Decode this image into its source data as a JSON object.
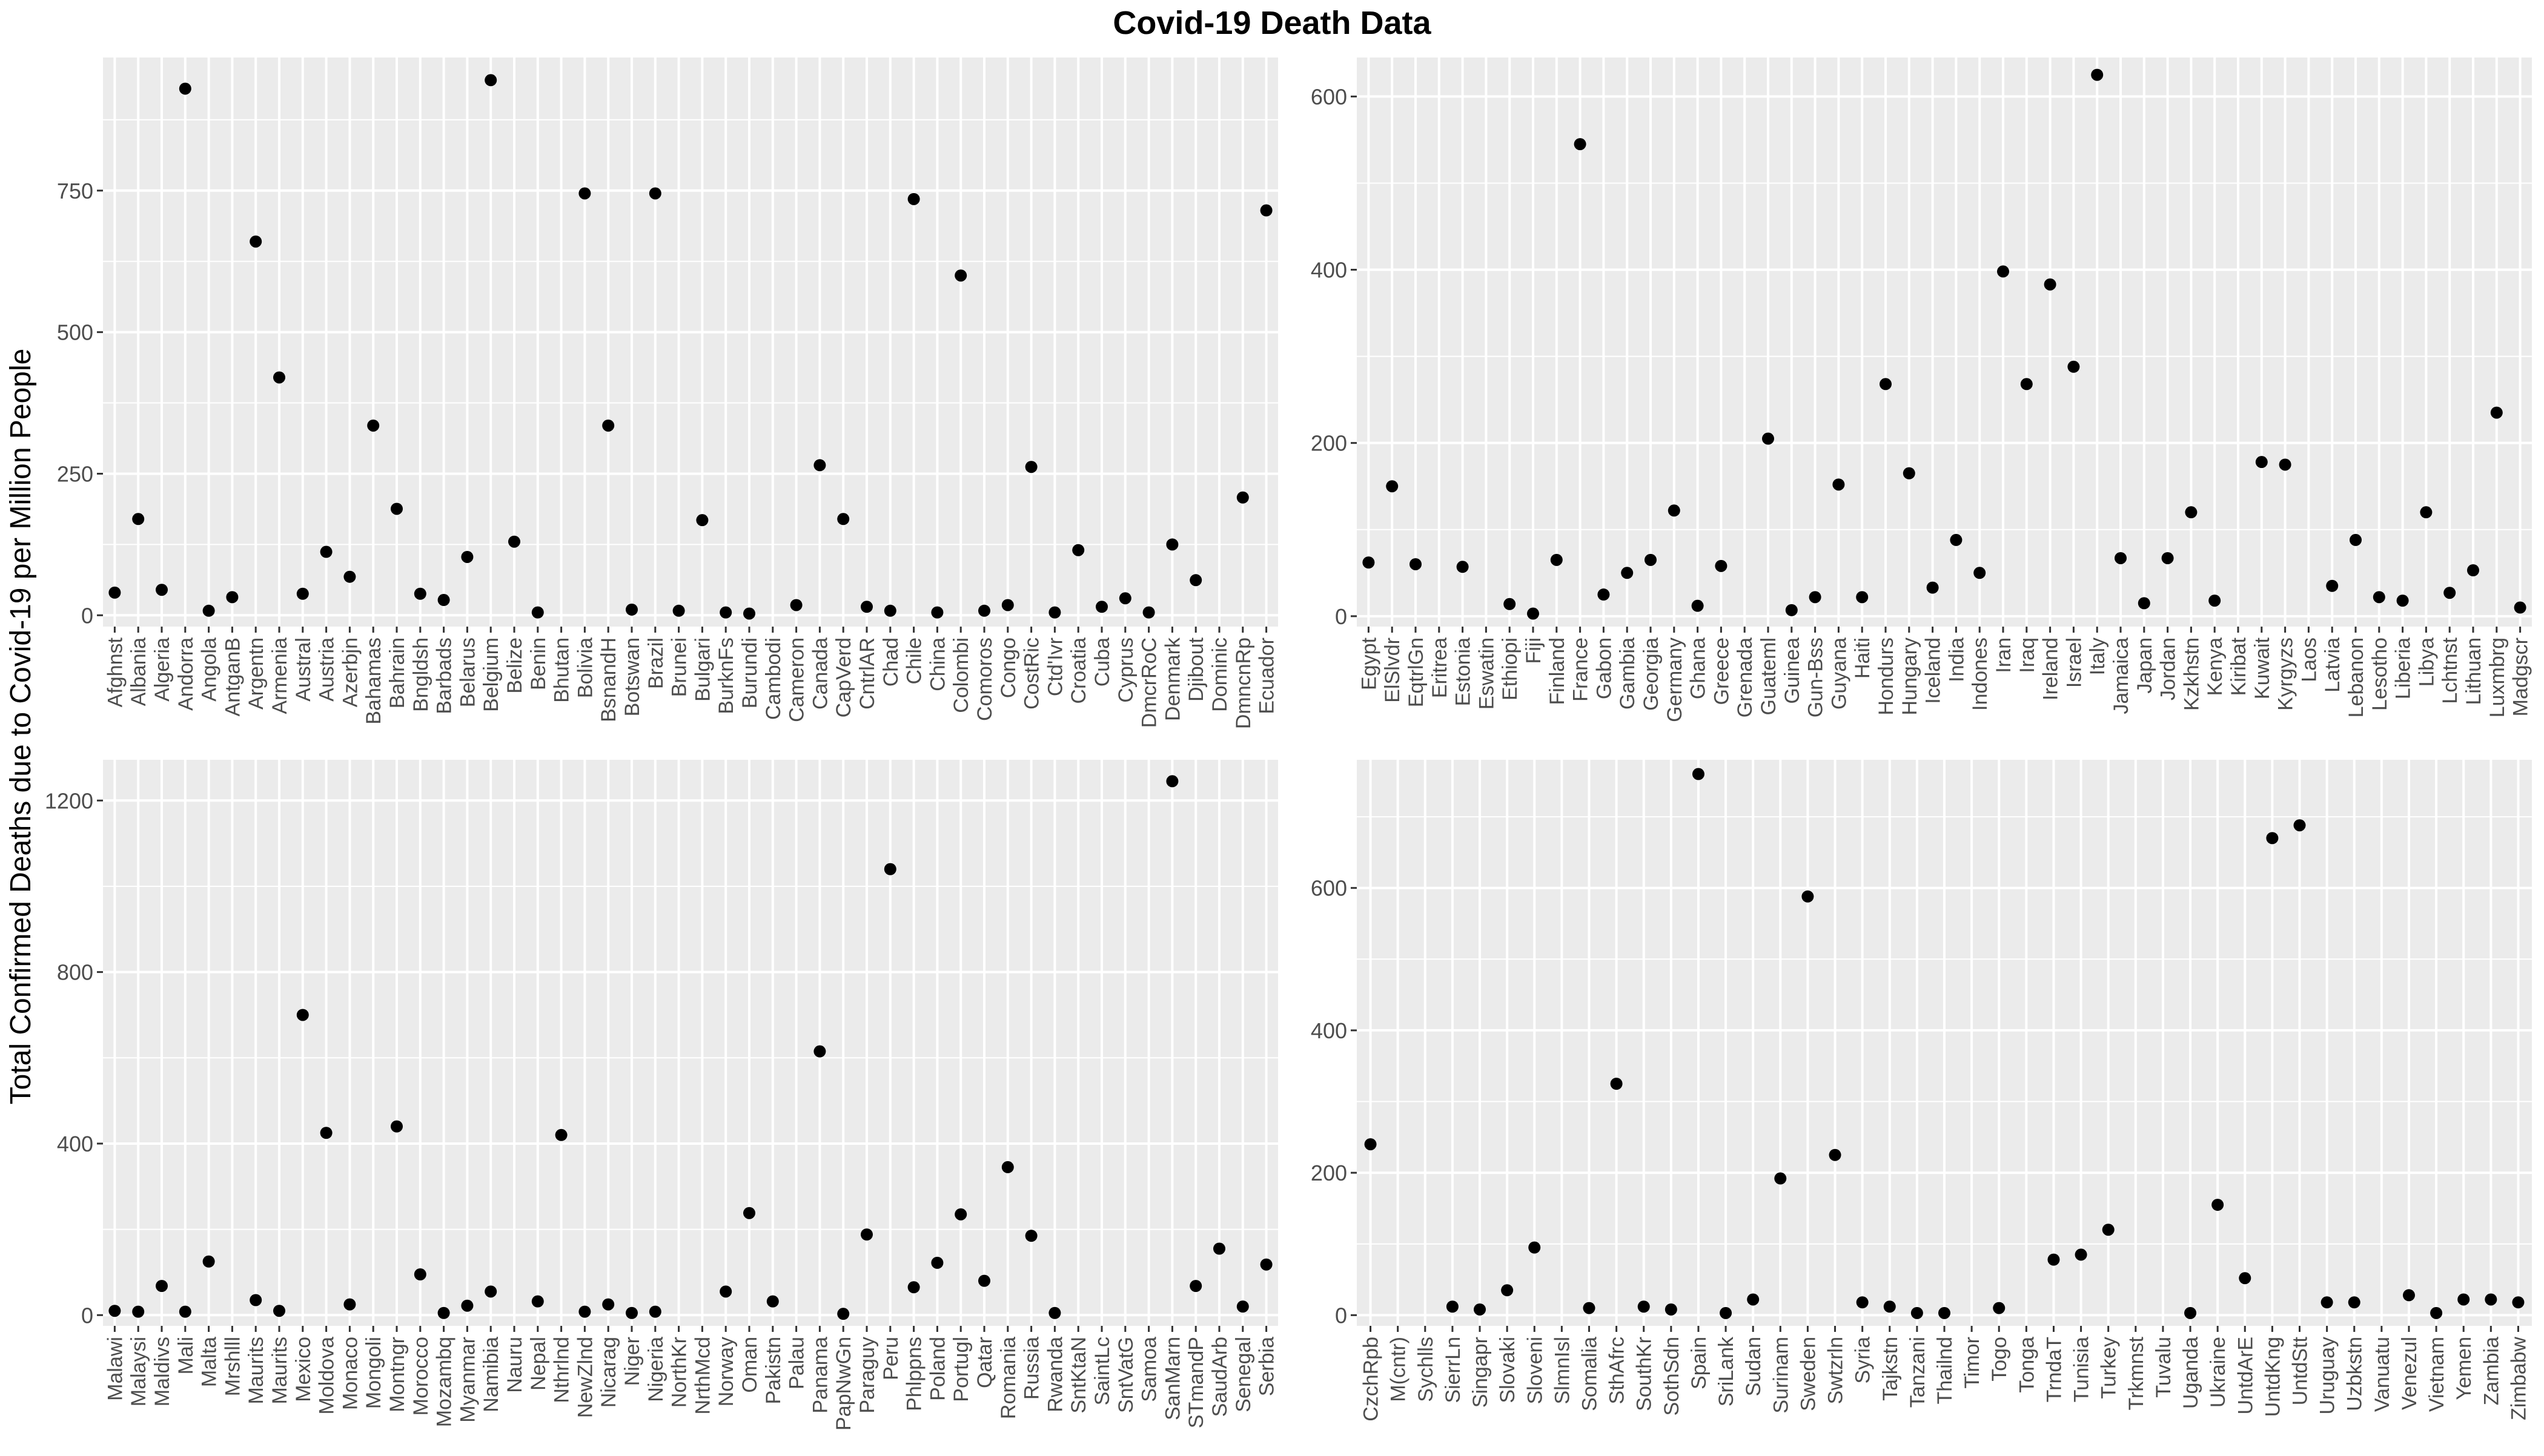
{
  "figure": {
    "title": "Covid-19 Death Data",
    "ylabel": "Total Confirmed Deaths due to Covid-19 per Million People"
  },
  "colors": {
    "panel_bg": "#ebebeb",
    "grid": "#ffffff",
    "point": "#000000",
    "tick_text": "#4d4d4d",
    "title_text": "#000000"
  },
  "chart_data": [
    {
      "type": "scatter",
      "panel": "top-left",
      "ylim": [
        -20,
        985
      ],
      "yticks": [
        0,
        250,
        500,
        750
      ],
      "categories": [
        "Afghnst",
        "Albania",
        "Algeria",
        "Andorra",
        "Angola",
        "AntganB",
        "Argentn",
        "Armenia",
        "Austral",
        "Austria",
        "Azerbjn",
        "Bahamas",
        "Bahrain",
        "Bngldsh",
        "Barbads",
        "Belarus",
        "Belgium",
        "Belize",
        "Benin",
        "Bhutan",
        "Bolivia",
        "BsnandH",
        "Botswan",
        "Brazil",
        "Brunei",
        "Bulgari",
        "BurknFs",
        "Burundi",
        "Cambodi",
        "Cameron",
        "Canada",
        "CapVerd",
        "CntrlAR",
        "Chad",
        "Chile",
        "China",
        "Colombi",
        "Comoros",
        "Congo",
        "CostRic",
        "Ctd'Ivr",
        "Croatia",
        "Cuba",
        "Cyprus",
        "DmcrRoC",
        "Denmark",
        "Djibout",
        "Dominic",
        "DmncnRp",
        "Ecuador"
      ],
      "values": [
        40,
        170,
        45,
        930,
        8,
        32,
        660,
        420,
        38,
        112,
        68,
        335,
        188,
        38,
        27,
        103,
        945,
        130,
        5,
        null,
        745,
        335,
        10,
        745,
        8,
        168,
        5,
        3,
        null,
        18,
        265,
        170,
        15,
        8,
        735,
        5,
        600,
        8,
        18,
        262,
        5,
        115,
        15,
        30,
        5,
        125,
        62,
        null,
        208,
        715
      ]
    },
    {
      "type": "scatter",
      "panel": "top-right",
      "ylim": [
        -12,
        645
      ],
      "yticks": [
        0,
        200,
        400,
        600
      ],
      "categories": [
        "Egypt",
        "ElSlvdr",
        "EqtrlGn",
        "Eritrea",
        "Estonia",
        "Eswatin",
        "Ethiopi",
        "Fiji",
        "Finland",
        "France",
        "Gabon",
        "Gambia",
        "Georgia",
        "Germany",
        "Ghana",
        "Greece",
        "Grenada",
        "Guateml",
        "Guinea",
        "Gun-Bss",
        "Guyana",
        "Haiti",
        "Hondurs",
        "Hungary",
        "Iceland",
        "India",
        "Indones",
        "Iran",
        "Iraq",
        "Ireland",
        "Israel",
        "Italy",
        "Jamaica",
        "Japan",
        "Jordan",
        "Kzkhstn",
        "Kenya",
        "Kiribat",
        "Kuwait",
        "Kyrgyzs",
        "Laos",
        "Latvia",
        "Lebanon",
        "Lesotho",
        "Liberia",
        "Libya",
        "Lchtnst",
        "Lithuan",
        "Luxmbrg",
        "Madgscr"
      ],
      "values": [
        62,
        150,
        60,
        null,
        57,
        null,
        14,
        3,
        65,
        545,
        25,
        50,
        65,
        122,
        12,
        58,
        null,
        205,
        7,
        22,
        152,
        22,
        268,
        165,
        33,
        88,
        50,
        398,
        268,
        383,
        288,
        625,
        67,
        15,
        67,
        120,
        18,
        null,
        178,
        175,
        null,
        35,
        88,
        22,
        18,
        120,
        27,
        53,
        235,
        10
      ]
    },
    {
      "type": "scatter",
      "panel": "bottom-left",
      "ylim": [
        -25,
        1295
      ],
      "yticks": [
        0,
        400,
        800,
        1200
      ],
      "categories": [
        "Malawi",
        "Malaysi",
        "Maldivs",
        "Mali",
        "Malta",
        "Mrshlll",
        "Maurits",
        "Maurits",
        "Mexico",
        "Moldova",
        "Monaco",
        "Mongoli",
        "Montngr",
        "Morocco",
        "Mozambq",
        "Myanmar",
        "Namibia",
        "Nauru",
        "Nepal",
        "Nthrlnd",
        "NewZlnd",
        "Nicarag",
        "Niger",
        "Nigeria",
        "NorthKr",
        "NrthMcd",
        "Norway",
        "Oman",
        "Pakistn",
        "Palau",
        "Panama",
        "PapNwGn",
        "Paraguy",
        "Peru",
        "Phlppns",
        "Poland",
        "Portugl",
        "Qatar",
        "Romania",
        "Russia",
        "Rwanda",
        "SntKtaN",
        "SaintLc",
        "SntVatG",
        "Samoa",
        "SanMarn",
        "STmandP",
        "SaudArb",
        "Senegal",
        "Serbia"
      ],
      "values": [
        10,
        8,
        68,
        8,
        125,
        null,
        35,
        10,
        700,
        425,
        25,
        null,
        440,
        95,
        5,
        22,
        55,
        null,
        32,
        420,
        8,
        25,
        5,
        8,
        null,
        null,
        55,
        238,
        32,
        null,
        615,
        3,
        188,
        1040,
        65,
        122,
        235,
        80,
        345,
        185,
        5,
        null,
        null,
        null,
        null,
        1245,
        68,
        155,
        20,
        118
      ]
    },
    {
      "type": "scatter",
      "panel": "bottom-right",
      "ylim": [
        -15,
        780
      ],
      "yticks": [
        0,
        200,
        400,
        600
      ],
      "categories": [
        "CzchRpb",
        "M(cntr)",
        "Sychlls",
        "SierrLn",
        "Singapr",
        "Slovaki",
        "Sloveni",
        "SlmnIsl",
        "Somalia",
        "SthAfrc",
        "SouthKr",
        "SothSdn",
        "Spain",
        "SriLank",
        "Sudan",
        "Surinam",
        "Sweden",
        "Swtzrln",
        "Syria",
        "Tajkstn",
        "Tanzani",
        "Thailnd",
        "Timor",
        "Togo",
        "Tonga",
        "TrndaT",
        "Tunisia",
        "Turkey",
        "Trkmnst",
        "Tuvalu",
        "Uganda",
        "Ukraine",
        "UntdArE",
        "UntdKng",
        "UntdStt",
        "Uruguay",
        "Uzbkstn",
        "Vanuatu",
        "Venezul",
        "Vietnam",
        "Yemen",
        "Zambia",
        "Zimbabw"
      ],
      "values": [
        240,
        null,
        null,
        12,
        8,
        35,
        95,
        null,
        10,
        325,
        12,
        8,
        760,
        3,
        22,
        192,
        588,
        225,
        18,
        12,
        3,
        3,
        null,
        10,
        null,
        78,
        85,
        120,
        null,
        null,
        3,
        155,
        52,
        670,
        688,
        18,
        18,
        null,
        28,
        3,
        22,
        22,
        18
      ]
    }
  ]
}
